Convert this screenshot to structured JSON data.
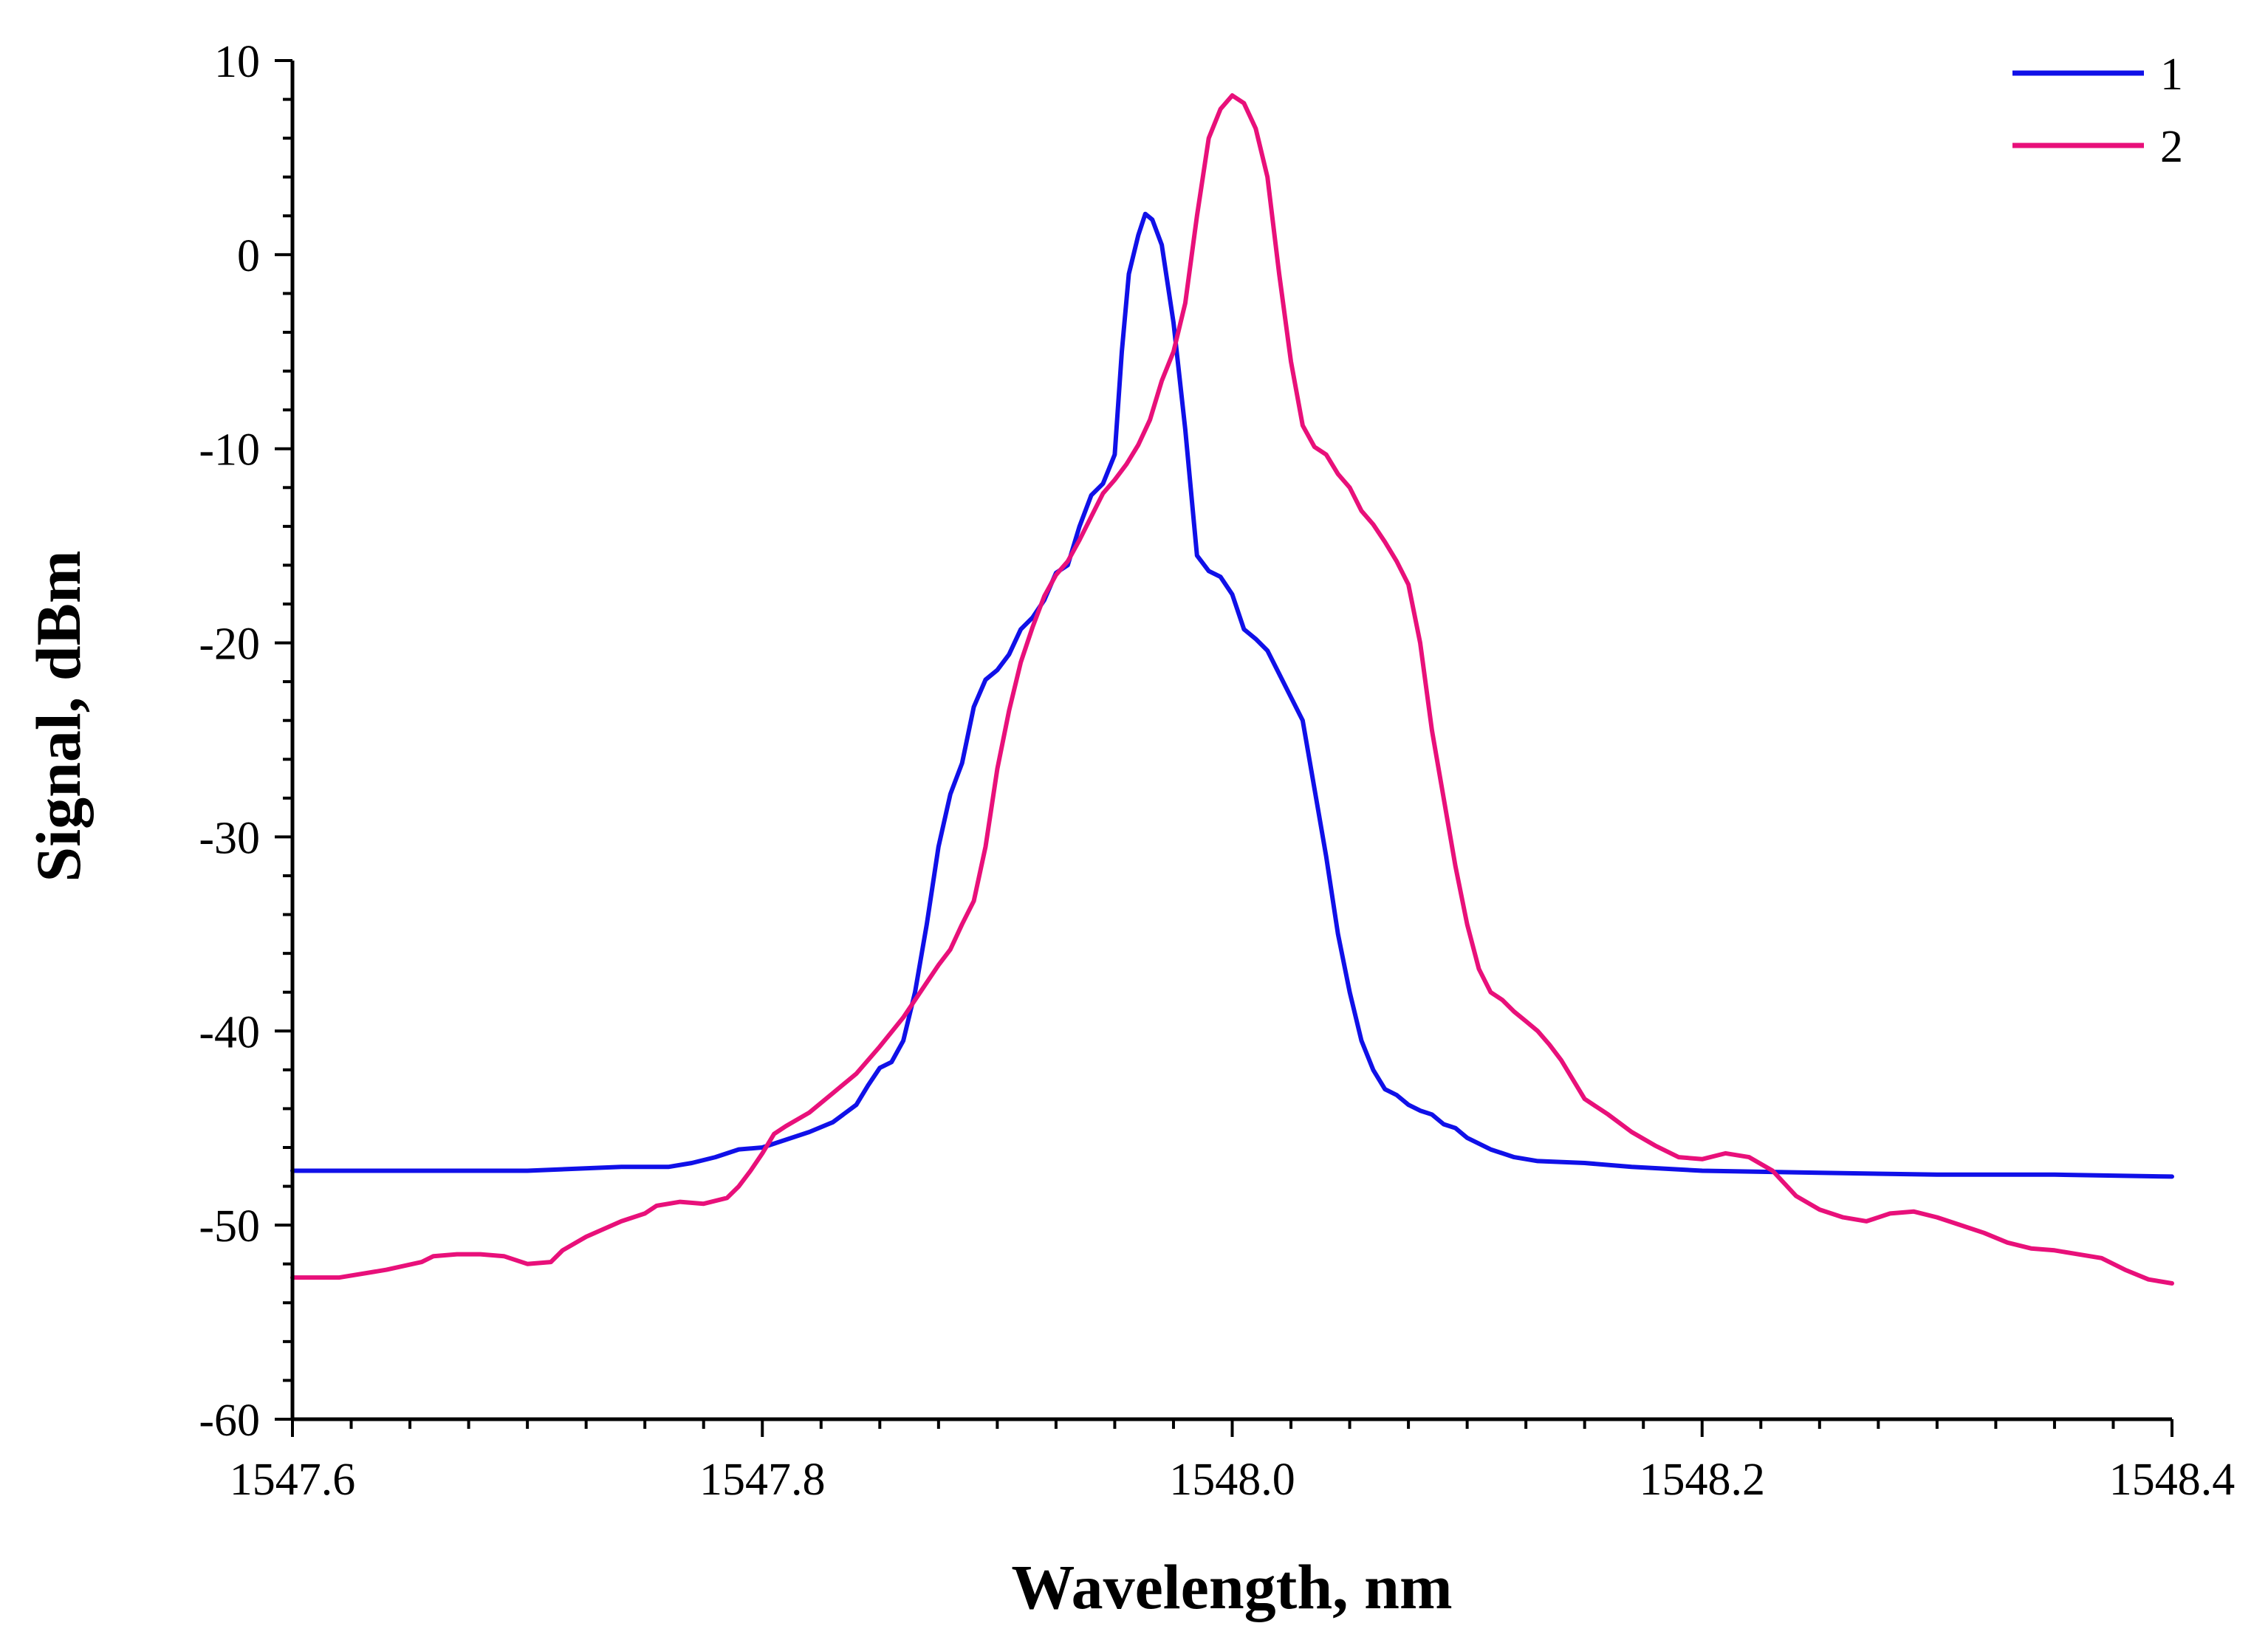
{
  "chart_data": {
    "type": "line",
    "title": "",
    "xlabel": "Wavelength, nm",
    "ylabel": "Signal, dBm",
    "xlim": [
      1547.6,
      1548.4
    ],
    "ylim": [
      -60,
      10
    ],
    "x_ticks": [
      1547.6,
      1547.8,
      1548.0,
      1548.2,
      1548.4
    ],
    "x_tick_labels": [
      "1547.6",
      "1547.8",
      "1548.0",
      "1548.2",
      "1548.4"
    ],
    "y_ticks": [
      -60,
      -50,
      -40,
      -30,
      -20,
      -10,
      0,
      10
    ],
    "y_tick_labels": [
      "-60",
      "-50",
      "-40",
      "-30",
      "-20",
      "-10",
      "0",
      "10"
    ],
    "grid": false,
    "legend_position": "top-right",
    "series": [
      {
        "name": "1",
        "color": "#1010e8",
        "points": [
          [
            1547.6,
            -47.2
          ],
          [
            1547.65,
            -47.2
          ],
          [
            1547.7,
            -47.2
          ],
          [
            1547.74,
            -47.0
          ],
          [
            1547.76,
            -47.0
          ],
          [
            1547.77,
            -46.8
          ],
          [
            1547.78,
            -46.5
          ],
          [
            1547.79,
            -46.1
          ],
          [
            1547.8,
            -46.0
          ],
          [
            1547.81,
            -45.6
          ],
          [
            1547.82,
            -45.2
          ],
          [
            1547.83,
            -44.7
          ],
          [
            1547.84,
            -43.8
          ],
          [
            1547.845,
            -42.8
          ],
          [
            1547.85,
            -41.9
          ],
          [
            1547.855,
            -41.6
          ],
          [
            1547.86,
            -40.5
          ],
          [
            1547.865,
            -38.0
          ],
          [
            1547.87,
            -34.5
          ],
          [
            1547.875,
            -30.5
          ],
          [
            1547.88,
            -27.8
          ],
          [
            1547.885,
            -26.2
          ],
          [
            1547.89,
            -23.3
          ],
          [
            1547.895,
            -21.9
          ],
          [
            1547.9,
            -21.4
          ],
          [
            1547.905,
            -20.6
          ],
          [
            1547.91,
            -19.3
          ],
          [
            1547.915,
            -18.7
          ],
          [
            1547.92,
            -17.8
          ],
          [
            1547.925,
            -16.4
          ],
          [
            1547.93,
            -16.0
          ],
          [
            1547.935,
            -14.0
          ],
          [
            1547.94,
            -12.4
          ],
          [
            1547.945,
            -11.8
          ],
          [
            1547.95,
            -10.3
          ],
          [
            1547.953,
            -5.0
          ],
          [
            1547.956,
            -1.0
          ],
          [
            1547.96,
            1.0
          ],
          [
            1547.963,
            2.1
          ],
          [
            1547.966,
            1.8
          ],
          [
            1547.97,
            0.5
          ],
          [
            1547.975,
            -3.5
          ],
          [
            1547.98,
            -9.0
          ],
          [
            1547.985,
            -15.5
          ],
          [
            1547.99,
            -16.3
          ],
          [
            1547.995,
            -16.6
          ],
          [
            1548.0,
            -17.5
          ],
          [
            1548.005,
            -19.3
          ],
          [
            1548.01,
            -19.8
          ],
          [
            1548.015,
            -20.4
          ],
          [
            1548.02,
            -21.6
          ],
          [
            1548.025,
            -22.8
          ],
          [
            1548.03,
            -24.0
          ],
          [
            1548.035,
            -27.5
          ],
          [
            1548.04,
            -31.0
          ],
          [
            1548.045,
            -35.0
          ],
          [
            1548.05,
            -38.0
          ],
          [
            1548.055,
            -40.5
          ],
          [
            1548.06,
            -42.0
          ],
          [
            1548.065,
            -43.0
          ],
          [
            1548.07,
            -43.3
          ],
          [
            1548.075,
            -43.8
          ],
          [
            1548.08,
            -44.1
          ],
          [
            1548.085,
            -44.3
          ],
          [
            1548.09,
            -44.8
          ],
          [
            1548.095,
            -45.0
          ],
          [
            1548.1,
            -45.5
          ],
          [
            1548.11,
            -46.1
          ],
          [
            1548.12,
            -46.5
          ],
          [
            1548.13,
            -46.7
          ],
          [
            1548.15,
            -46.8
          ],
          [
            1548.17,
            -47.0
          ],
          [
            1548.2,
            -47.2
          ],
          [
            1548.25,
            -47.3
          ],
          [
            1548.3,
            -47.4
          ],
          [
            1548.35,
            -47.4
          ],
          [
            1548.4,
            -47.5
          ]
        ]
      },
      {
        "name": "2",
        "color": "#e8107a",
        "points": [
          [
            1547.6,
            -52.7
          ],
          [
            1547.62,
            -52.7
          ],
          [
            1547.64,
            -52.3
          ],
          [
            1547.655,
            -51.9
          ],
          [
            1547.66,
            -51.6
          ],
          [
            1547.67,
            -51.5
          ],
          [
            1547.68,
            -51.5
          ],
          [
            1547.69,
            -51.6
          ],
          [
            1547.7,
            -52.0
          ],
          [
            1547.71,
            -51.9
          ],
          [
            1547.715,
            -51.3
          ],
          [
            1547.725,
            -50.6
          ],
          [
            1547.74,
            -49.8
          ],
          [
            1547.75,
            -49.4
          ],
          [
            1547.755,
            -49.0
          ],
          [
            1547.765,
            -48.8
          ],
          [
            1547.775,
            -48.9
          ],
          [
            1547.785,
            -48.6
          ],
          [
            1547.79,
            -48.0
          ],
          [
            1547.795,
            -47.2
          ],
          [
            1547.8,
            -46.3
          ],
          [
            1547.805,
            -45.3
          ],
          [
            1547.81,
            -44.9
          ],
          [
            1547.82,
            -44.2
          ],
          [
            1547.83,
            -43.2
          ],
          [
            1547.84,
            -42.2
          ],
          [
            1547.85,
            -40.8
          ],
          [
            1547.86,
            -39.3
          ],
          [
            1547.87,
            -37.5
          ],
          [
            1547.875,
            -36.6
          ],
          [
            1547.88,
            -35.8
          ],
          [
            1547.885,
            -34.5
          ],
          [
            1547.89,
            -33.3
          ],
          [
            1547.895,
            -30.5
          ],
          [
            1547.9,
            -26.5
          ],
          [
            1547.905,
            -23.5
          ],
          [
            1547.91,
            -21.0
          ],
          [
            1547.915,
            -19.2
          ],
          [
            1547.92,
            -17.6
          ],
          [
            1547.925,
            -16.5
          ],
          [
            1547.93,
            -15.8
          ],
          [
            1547.935,
            -14.7
          ],
          [
            1547.94,
            -13.5
          ],
          [
            1547.945,
            -12.3
          ],
          [
            1547.95,
            -11.6
          ],
          [
            1547.955,
            -10.8
          ],
          [
            1547.96,
            -9.8
          ],
          [
            1547.965,
            -8.5
          ],
          [
            1547.97,
            -6.5
          ],
          [
            1547.975,
            -5.0
          ],
          [
            1547.98,
            -2.5
          ],
          [
            1547.985,
            2.0
          ],
          [
            1547.99,
            6.0
          ],
          [
            1547.995,
            7.5
          ],
          [
            1548.0,
            8.2
          ],
          [
            1548.005,
            7.8
          ],
          [
            1548.01,
            6.5
          ],
          [
            1548.015,
            4.0
          ],
          [
            1548.02,
            -1.0
          ],
          [
            1548.025,
            -5.5
          ],
          [
            1548.03,
            -8.8
          ],
          [
            1548.035,
            -9.9
          ],
          [
            1548.04,
            -10.3
          ],
          [
            1548.045,
            -11.3
          ],
          [
            1548.05,
            -12.0
          ],
          [
            1548.055,
            -13.2
          ],
          [
            1548.06,
            -13.9
          ],
          [
            1548.065,
            -14.8
          ],
          [
            1548.07,
            -15.8
          ],
          [
            1548.075,
            -17.0
          ],
          [
            1548.08,
            -20.0
          ],
          [
            1548.085,
            -24.5
          ],
          [
            1548.09,
            -28.0
          ],
          [
            1548.095,
            -31.5
          ],
          [
            1548.1,
            -34.5
          ],
          [
            1548.105,
            -36.8
          ],
          [
            1548.11,
            -38.0
          ],
          [
            1548.115,
            -38.4
          ],
          [
            1548.12,
            -39.0
          ],
          [
            1548.125,
            -39.5
          ],
          [
            1548.13,
            -40.0
          ],
          [
            1548.135,
            -40.7
          ],
          [
            1548.14,
            -41.5
          ],
          [
            1548.145,
            -42.5
          ],
          [
            1548.15,
            -43.5
          ],
          [
            1548.16,
            -44.3
          ],
          [
            1548.17,
            -45.2
          ],
          [
            1548.18,
            -45.9
          ],
          [
            1548.19,
            -46.5
          ],
          [
            1548.2,
            -46.6
          ],
          [
            1548.21,
            -46.3
          ],
          [
            1548.22,
            -46.5
          ],
          [
            1548.23,
            -47.2
          ],
          [
            1548.24,
            -48.5
          ],
          [
            1548.25,
            -49.2
          ],
          [
            1548.26,
            -49.6
          ],
          [
            1548.27,
            -49.8
          ],
          [
            1548.28,
            -49.4
          ],
          [
            1548.29,
            -49.3
          ],
          [
            1548.3,
            -49.6
          ],
          [
            1548.31,
            -50.0
          ],
          [
            1548.32,
            -50.4
          ],
          [
            1548.33,
            -50.9
          ],
          [
            1548.34,
            -51.2
          ],
          [
            1548.35,
            -51.3
          ],
          [
            1548.36,
            -51.5
          ],
          [
            1548.37,
            -51.7
          ],
          [
            1548.38,
            -52.3
          ],
          [
            1548.39,
            -52.8
          ],
          [
            1548.4,
            -53.0
          ]
        ]
      }
    ]
  }
}
